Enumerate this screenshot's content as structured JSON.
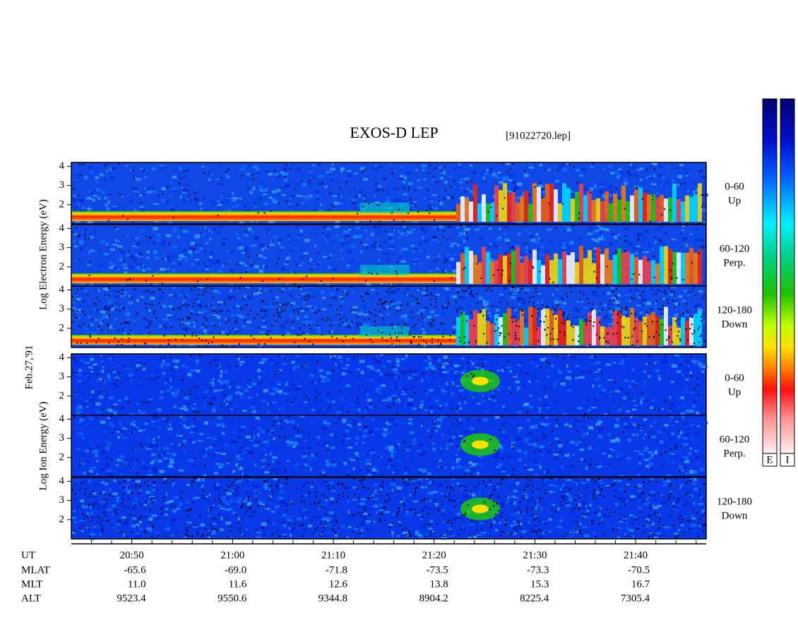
{
  "chart_data": {
    "type": "spectrogram",
    "title": "EXOS-D LEP",
    "subtitle": "[91022720.lep]",
    "date_label": "Feb.27,'91",
    "ylim": [
      1,
      4.2
    ],
    "yticks": [
      2,
      3,
      4
    ],
    "xlim": [
      1244,
      1307
    ],
    "xticks": [
      {
        "value": 1250,
        "label": "20:50"
      },
      {
        "value": 1260,
        "label": "21:00"
      },
      {
        "value": 1270,
        "label": "21:10"
      },
      {
        "value": 1280,
        "label": "21:20"
      },
      {
        "value": 1290,
        "label": "21:30"
      },
      {
        "value": 1300,
        "label": "21:40"
      }
    ],
    "minor_xticks": [
      1246,
      1248,
      1252,
      1254,
      1256,
      1258,
      1262,
      1264,
      1266,
      1268,
      1272,
      1274,
      1276,
      1278,
      1282,
      1284,
      1286,
      1288,
      1292,
      1294,
      1296,
      1298,
      1302,
      1304,
      1306
    ],
    "groups": [
      {
        "ylabel": "Log Electron Energy (eV)",
        "species": "electron",
        "panels": [
          {
            "range": "0-60",
            "dir": "Up"
          },
          {
            "range": "60-120",
            "dir": "Perp."
          },
          {
            "range": "120-180",
            "dir": "Down"
          }
        ]
      },
      {
        "ylabel": "Log Ion Energy (eV)",
        "species": "ion",
        "panels": [
          {
            "range": "0-60",
            "dir": "Up"
          },
          {
            "range": "60-120",
            "dir": "Perp."
          },
          {
            "range": "120-180",
            "dir": "Down"
          }
        ]
      }
    ],
    "ut_label": "UT",
    "rows": [
      {
        "name": "MLAT",
        "values": [
          "-65.6",
          "-69.0",
          "-71.8",
          "-73.5",
          "-73.3",
          "-70.5"
        ]
      },
      {
        "name": "MLT",
        "values": [
          "11.0",
          "11.6",
          "12.6",
          "13.8",
          "15.3",
          "16.7"
        ]
      },
      {
        "name": "ALT",
        "values": [
          "9523.4",
          "9550.6",
          "9344.8",
          "8904.2",
          "8225.4",
          "7305.4"
        ]
      }
    ],
    "colorbars": [
      "E",
      "I"
    ]
  }
}
